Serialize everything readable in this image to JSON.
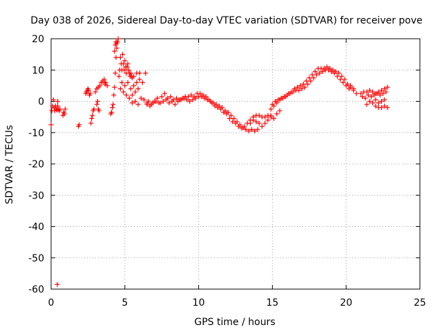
{
  "chart_data": {
    "type": "scatter",
    "title": "Day 038 of 2026, Sidereal Day-to-day VTEC variation (SDTVAR) for receiver pove",
    "xlabel": "GPS time / hours",
    "ylabel": "SDTVAR / TECUs",
    "xlim": [
      0,
      25
    ],
    "ylim": [
      -60,
      20
    ],
    "xticks": [
      0,
      5,
      10,
      15,
      20,
      25
    ],
    "yticks": [
      20,
      10,
      0,
      -10,
      -20,
      -30,
      -40,
      -50,
      -60
    ],
    "marker": "+",
    "color": "#ff0000",
    "grid": true,
    "series": [
      {
        "name": "SDTVAR",
        "x": [
          0.0,
          0.05,
          0.1,
          0.15,
          0.2,
          0.25,
          0.3,
          0.35,
          0.4,
          0.45,
          0.5,
          0.55,
          0.6,
          0.45,
          0.8,
          0.85,
          0.9,
          0.95,
          1.85,
          1.9,
          2.35,
          2.4,
          2.45,
          2.5,
          2.55,
          2.6,
          2.65,
          2.7,
          2.75,
          2.8,
          2.85,
          2.9,
          3.0,
          3.1,
          3.2,
          3.3,
          3.4,
          3.5,
          3.6,
          3.7,
          3.8,
          3.65,
          3.1,
          3.15,
          3.2,
          3.25,
          4.05,
          4.1,
          4.15,
          4.2,
          4.25,
          4.3,
          4.35,
          4.4,
          4.45,
          4.5,
          4.55,
          4.3,
          4.35,
          4.4,
          4.45,
          4.6,
          4.65,
          4.7,
          4.75,
          4.8,
          4.85,
          4.9,
          4.95,
          5.0,
          5.05,
          5.1,
          5.15,
          5.2,
          5.25,
          5.3,
          5.35,
          5.4,
          5.45,
          5.5,
          4.7,
          4.8,
          4.9,
          5.0,
          5.1,
          5.2,
          5.3,
          5.4,
          5.5,
          5.6,
          5.7,
          5.8,
          5.9,
          6.0,
          5.6,
          5.8,
          6.0,
          6.2,
          6.4,
          5.5,
          5.7,
          5.9,
          6.1,
          6.3,
          6.5,
          6.5,
          6.7,
          6.9,
          7.1,
          7.3,
          7.5,
          7.7,
          7.9,
          8.1,
          8.3,
          8.5,
          8.7,
          8.9,
          9.1,
          9.3,
          9.5,
          9.7,
          9.9,
          10.1,
          10.3,
          10.5,
          10.7,
          10.9,
          11.1,
          11.3,
          11.5,
          11.7,
          11.9,
          12.1,
          12.3,
          12.5,
          12.7,
          12.9,
          13.1,
          13.3,
          13.5,
          13.7,
          13.9,
          14.1,
          14.3,
          14.5,
          14.7,
          14.9,
          6.6,
          6.8,
          7.0,
          7.2,
          7.4,
          7.6,
          7.8,
          8.0,
          8.2,
          8.4,
          8.6,
          8.8,
          9.0,
          9.2,
          9.4,
          9.6,
          9.8,
          10.0,
          10.2,
          10.4,
          10.6,
          10.8,
          11.0,
          11.2,
          11.4,
          11.6,
          11.8,
          12.0,
          12.2,
          12.4,
          12.6,
          12.8,
          13.0,
          13.2,
          13.4,
          13.6,
          13.8,
          14.0,
          13.5,
          13.7,
          13.9,
          14.1,
          14.3,
          14.5,
          14.7,
          14.9,
          15.1,
          15.3,
          15.5,
          15.0,
          15.2,
          15.4,
          15.6,
          15.8,
          16.0,
          16.2,
          16.4,
          16.6,
          16.8,
          17.0,
          17.2,
          17.4,
          17.6,
          17.8,
          18.0,
          18.2,
          18.4,
          18.6,
          18.8,
          19.0,
          19.2,
          19.4,
          19.6,
          19.8,
          20.0,
          20.2,
          14.9,
          15.1,
          15.3,
          15.5,
          15.7,
          15.9,
          16.1,
          16.3,
          16.5,
          16.7,
          16.9,
          17.1,
          17.3,
          17.5,
          17.7,
          17.9,
          18.1,
          18.3,
          18.5,
          18.7,
          18.9,
          19.1,
          19.3,
          19.5,
          19.7,
          19.9,
          20.1,
          20.3,
          20.5,
          20.3,
          20.5,
          20.7,
          21.0,
          21.2,
          21.4,
          21.6,
          21.8,
          22.0,
          22.2,
          22.4,
          22.6,
          22.8,
          21.1,
          21.3,
          21.5,
          21.7,
          21.9,
          22.1,
          22.3,
          22.5,
          22.7,
          21.4,
          21.6,
          21.8,
          22.0,
          22.2,
          22.4,
          22.6,
          22.0,
          22.2,
          22.4,
          22.6,
          22.8,
          0.42
        ],
        "y": [
          -7.5,
          -3,
          -1.5,
          0.5,
          -2,
          -3,
          -1.5,
          -2.5,
          -2.8,
          0,
          -2.5,
          -3,
          -2.5,
          -1.5,
          -4.5,
          -3.5,
          -4,
          -2.5,
          -8,
          -7.5,
          2.5,
          3,
          3.5,
          4,
          3.5,
          2,
          2.5,
          -7,
          -5.5,
          -4.5,
          -3,
          -2.5,
          3,
          4,
          4.5,
          5,
          6,
          6.5,
          7,
          6,
          5,
          5.5,
          -1,
          0,
          -2.5,
          -3,
          -4,
          -3.5,
          -2,
          -1,
          2,
          4.5,
          9,
          14,
          17,
          19,
          20,
          16,
          18,
          19,
          18.5,
          8,
          10,
          14,
          12,
          10,
          15,
          12,
          10,
          13,
          11,
          9,
          11,
          12,
          10,
          9,
          8,
          9,
          8,
          7.5,
          4,
          6,
          3,
          5,
          2,
          6,
          1,
          4,
          2,
          5,
          3,
          6,
          4,
          9,
          8,
          9,
          7,
          6,
          9,
          -0.5,
          0,
          -1,
          1,
          0.5,
          -0.5,
          -1,
          -1.5,
          -0.5,
          0,
          -0.5,
          1.5,
          2.5,
          1,
          1.5,
          0.5,
          1,
          0.5,
          1,
          1.5,
          1.5,
          2,
          1.5,
          2.5,
          2.5,
          2,
          1.5,
          0.5,
          -0.5,
          -1.5,
          -2,
          -2.5,
          -3.5,
          -4,
          -5.5,
          -6.5,
          -7,
          -8,
          -8.5,
          -8,
          -7,
          -6,
          -5,
          -4.5,
          -4.5,
          -5,
          -5,
          -4.5,
          -4.5,
          0,
          -1,
          0,
          1,
          -0.5,
          0,
          0.5,
          -0.5,
          0,
          -1,
          0,
          0.5,
          1,
          0.5,
          0,
          0.5,
          1,
          1.5,
          1.5,
          1,
          0.5,
          0,
          -0.5,
          -1,
          -1.5,
          -2,
          -3,
          -3.5,
          -4.5,
          -5.5,
          -6.5,
          -7.5,
          -8.5,
          -9,
          -9.5,
          -9,
          -9.5,
          -9,
          -7,
          -6,
          -6.5,
          -7,
          -8,
          -7,
          -6,
          -5,
          -5.5,
          -4,
          -3,
          -1,
          0,
          0.5,
          1,
          1.5,
          2,
          2.5,
          3,
          3.5,
          3.5,
          4,
          4.5,
          5.5,
          6.5,
          7.5,
          8.5,
          9,
          9.5,
          10,
          10,
          9.5,
          9,
          8,
          7,
          6,
          5,
          4,
          -2.5,
          -1.5,
          -0.5,
          0.5,
          1,
          1.5,
          2.5,
          3,
          4,
          4.5,
          5,
          5.5,
          6.5,
          7.5,
          8.5,
          9.5,
          10.5,
          10.5,
          10.5,
          11,
          10.5,
          10,
          9.5,
          9,
          8,
          7,
          5.5,
          4.5,
          4,
          5,
          3.5,
          2.5,
          2.5,
          3,
          3,
          3.5,
          3,
          2.5,
          3,
          3.5,
          4,
          4.5,
          1.5,
          1,
          2,
          1.5,
          2,
          2.5,
          2,
          2.5,
          3,
          -1,
          0,
          -0.5,
          0.5,
          -0.5,
          0,
          0.5,
          -1.5,
          -2,
          -2,
          -1.5,
          -2,
          -58.5
        ]
      }
    ]
  }
}
